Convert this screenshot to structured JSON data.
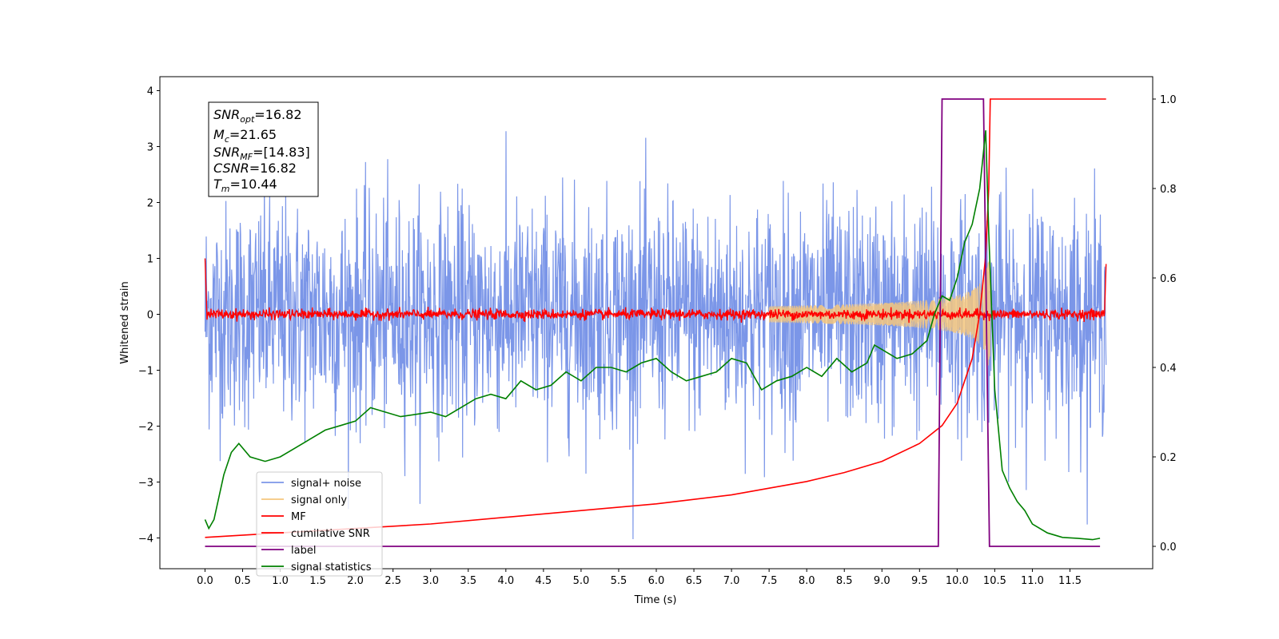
{
  "chart_data": {
    "type": "line",
    "xlabel": "Time (s)",
    "ylabel_left": "Whitened strain",
    "xlim": [
      -0.6,
      12.6
    ],
    "ylim_left": [
      -4.55,
      4.25
    ],
    "ylim_right": [
      -0.05,
      1.05
    ],
    "x_ticks": [
      "0.0",
      "0.5",
      "1.0",
      "1.5",
      "2.0",
      "2.5",
      "3.0",
      "3.5",
      "4.0",
      "4.5",
      "5.0",
      "5.5",
      "6.0",
      "6.5",
      "7.0",
      "7.5",
      "8.0",
      "8.5",
      "9.0",
      "9.5",
      "10.0",
      "10.5",
      "11.0",
      "11.5"
    ],
    "y_ticks_left": [
      "4",
      "3",
      "2",
      "1",
      "0",
      "−1",
      "−2",
      "−3",
      "−4"
    ],
    "y_ticks_right": [
      "1.0",
      "0.8",
      "0.6",
      "0.4",
      "0.2",
      "0.0"
    ],
    "annotation": {
      "snr_opt": {
        "sym": "SNR",
        "sub": "opt",
        "val": "=16.82"
      },
      "mc": {
        "sym": "M",
        "sub": "c",
        "val": "=21.65"
      },
      "snr_mf": {
        "sym": "SNR",
        "sub": "MF",
        "val": "=[14.83]"
      },
      "csnr": {
        "sym": "CSNR",
        "val": "=16.82"
      },
      "tm": {
        "sym": "T",
        "sub": "m",
        "val": "=10.44"
      }
    },
    "legend": {
      "position": "lower-left",
      "entries": [
        "signal+ noise",
        "signal only",
        "MF",
        "cumilative SNR",
        "label",
        "signal statistics"
      ]
    },
    "colors": {
      "noise": "#7b96e8",
      "signal": "#f5c77e",
      "mf": "#ff0000",
      "cumsnr": "#ff0000",
      "label": "#800080",
      "stats": "#008000"
    },
    "series": [
      {
        "name": "signal+ noise",
        "axis": "left",
        "amplitude_range": [
          -4.1,
          3.7
        ],
        "x_range": [
          0.0,
          11.98
        ]
      },
      {
        "name": "signal only",
        "axis": "left",
        "chirp_end": 10.44,
        "peak_amplitude": 1.4
      },
      {
        "name": "MF",
        "axis": "left",
        "baseline": 0.0,
        "start_value": 1.0,
        "end_value": 0.9
      },
      {
        "name": "cumilative SNR",
        "axis": "right",
        "x": [
          0.0,
          1.0,
          2.0,
          3.0,
          4.0,
          5.0,
          6.0,
          7.0,
          7.5,
          8.0,
          8.5,
          9.0,
          9.5,
          9.8,
          10.0,
          10.2,
          10.3,
          10.38,
          10.42,
          10.44,
          11.98
        ],
        "y": [
          0.02,
          0.03,
          0.04,
          0.05,
          0.065,
          0.08,
          0.095,
          0.115,
          0.13,
          0.145,
          0.165,
          0.19,
          0.23,
          0.27,
          0.32,
          0.42,
          0.52,
          0.65,
          0.8,
          1.0,
          1.0
        ]
      },
      {
        "name": "label",
        "axis": "right",
        "x": [
          0.0,
          9.75,
          9.8,
          10.35,
          10.43,
          11.9
        ],
        "y": [
          0.0,
          0.0,
          1.0,
          1.0,
          0.0,
          0.0
        ]
      },
      {
        "name": "signal statistics",
        "axis": "right",
        "x": [
          0.0,
          0.05,
          0.12,
          0.25,
          0.35,
          0.45,
          0.6,
          0.8,
          1.0,
          1.2,
          1.4,
          1.6,
          1.8,
          2.0,
          2.2,
          2.4,
          2.6,
          2.8,
          3.0,
          3.2,
          3.4,
          3.6,
          3.8,
          4.0,
          4.2,
          4.4,
          4.6,
          4.8,
          5.0,
          5.2,
          5.4,
          5.6,
          5.8,
          6.0,
          6.2,
          6.4,
          6.6,
          6.8,
          7.0,
          7.2,
          7.4,
          7.6,
          7.8,
          8.0,
          8.2,
          8.4,
          8.6,
          8.8,
          8.9,
          9.0,
          9.2,
          9.4,
          9.6,
          9.7,
          9.8,
          9.9,
          10.0,
          10.1,
          10.2,
          10.3,
          10.38,
          10.42,
          10.5,
          10.6,
          10.7,
          10.8,
          10.9,
          11.0,
          11.2,
          11.4,
          11.6,
          11.8,
          11.9
        ],
        "y": [
          0.06,
          0.04,
          0.06,
          0.16,
          0.21,
          0.23,
          0.2,
          0.19,
          0.2,
          0.22,
          0.24,
          0.26,
          0.27,
          0.28,
          0.31,
          0.3,
          0.29,
          0.295,
          0.3,
          0.29,
          0.31,
          0.33,
          0.34,
          0.33,
          0.37,
          0.35,
          0.36,
          0.39,
          0.37,
          0.4,
          0.4,
          0.39,
          0.41,
          0.42,
          0.39,
          0.37,
          0.38,
          0.39,
          0.42,
          0.41,
          0.35,
          0.37,
          0.38,
          0.4,
          0.38,
          0.42,
          0.39,
          0.41,
          0.45,
          0.44,
          0.42,
          0.43,
          0.46,
          0.52,
          0.56,
          0.55,
          0.6,
          0.68,
          0.72,
          0.8,
          0.93,
          0.7,
          0.35,
          0.17,
          0.13,
          0.1,
          0.08,
          0.05,
          0.03,
          0.02,
          0.018,
          0.015,
          0.018
        ]
      }
    ]
  }
}
